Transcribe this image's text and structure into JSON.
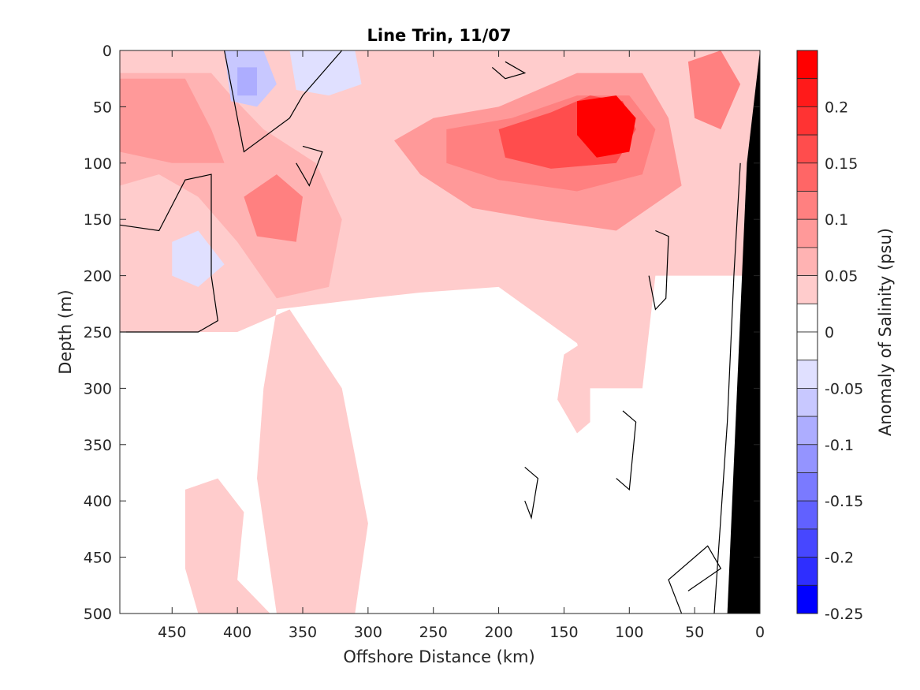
{
  "chart_data": {
    "type": "heatmap",
    "title": "Line Trin, 11/07",
    "xlabel": "Offshore Distance (km)",
    "ylabel": "Depth (m)",
    "colorbar_label": "Anomaly of Salinity (psu)",
    "xlim": [
      490,
      0
    ],
    "ylim": [
      0,
      500
    ],
    "x_reversed": true,
    "y_reversed": true,
    "x_ticks": [
      450,
      400,
      350,
      300,
      250,
      200,
      150,
      100,
      50,
      0
    ],
    "y_ticks": [
      0,
      50,
      100,
      150,
      200,
      250,
      300,
      350,
      400,
      450,
      500
    ],
    "clim": [
      -0.25,
      0.25
    ],
    "colorbar_ticks": [
      0.2,
      0.15,
      0.1,
      0.05,
      0,
      -0.05,
      -0.1,
      -0.15,
      -0.2,
      -0.25
    ],
    "colorbar_tick_labels": [
      "0.2",
      "0.15",
      "0.1",
      "0.05",
      "0",
      "-0.05",
      "-0.1",
      "-0.15",
      "-0.2",
      "-0.25"
    ],
    "colorbar_levels": [
      {
        "min": 0.225,
        "max": 0.25,
        "color": "#ff0000"
      },
      {
        "min": 0.2,
        "max": 0.225,
        "color": "#ff1a1a"
      },
      {
        "min": 0.175,
        "max": 0.2,
        "color": "#ff3333"
      },
      {
        "min": 0.15,
        "max": 0.175,
        "color": "#ff4d4d"
      },
      {
        "min": 0.125,
        "max": 0.15,
        "color": "#ff6666"
      },
      {
        "min": 0.1,
        "max": 0.125,
        "color": "#ff8080"
      },
      {
        "min": 0.075,
        "max": 0.1,
        "color": "#ff9999"
      },
      {
        "min": 0.05,
        "max": 0.075,
        "color": "#ffb3b3"
      },
      {
        "min": 0.025,
        "max": 0.05,
        "color": "#ffcccc"
      },
      {
        "min": 0.0,
        "max": 0.025,
        "color": "#ffffff"
      },
      {
        "min": -0.025,
        "max": 0.0,
        "color": "#ffffff"
      },
      {
        "min": -0.05,
        "max": -0.025,
        "color": "#e0e0ff"
      },
      {
        "min": -0.075,
        "max": -0.05,
        "color": "#c8c8ff"
      },
      {
        "min": -0.1,
        "max": -0.075,
        "color": "#adadff"
      },
      {
        "min": -0.125,
        "max": -0.1,
        "color": "#9494ff"
      },
      {
        "min": -0.15,
        "max": -0.125,
        "color": "#7a7aff"
      },
      {
        "min": -0.175,
        "max": -0.15,
        "color": "#6161ff"
      },
      {
        "min": -0.2,
        "max": -0.175,
        "color": "#4747ff"
      },
      {
        "min": -0.225,
        "max": -0.2,
        "color": "#2e2eff"
      },
      {
        "min": -0.25,
        "max": -0.225,
        "color": "#0000ff"
      }
    ],
    "features": {
      "pale_band": {
        "level": 0.03,
        "polygon": [
          [
            490,
            0
          ],
          [
            0,
            0
          ],
          [
            0,
            200
          ],
          [
            80,
            200
          ],
          [
            90,
            300
          ],
          [
            130,
            300
          ],
          [
            140,
            260
          ],
          [
            200,
            210
          ],
          [
            260,
            215
          ],
          [
            300,
            220
          ],
          [
            370,
            230
          ],
          [
            380,
            300
          ],
          [
            385,
            380
          ],
          [
            370,
            500
          ],
          [
            310,
            500
          ],
          [
            300,
            420
          ],
          [
            320,
            300
          ],
          [
            360,
            230
          ],
          [
            400,
            250
          ],
          [
            490,
            250
          ]
        ]
      },
      "lower_patch_left": {
        "level": 0.03,
        "polygon": [
          [
            440,
            390
          ],
          [
            415,
            380
          ],
          [
            395,
            410
          ],
          [
            400,
            470
          ],
          [
            375,
            500
          ],
          [
            430,
            500
          ],
          [
            440,
            460
          ]
        ]
      },
      "deep_right_patch": {
        "level": 0.03,
        "polygon": [
          [
            150,
            270
          ],
          [
            130,
            255
          ],
          [
            130,
            330
          ],
          [
            140,
            340
          ],
          [
            155,
            310
          ]
        ]
      },
      "mid_layer": {
        "level": 0.06,
        "polygon": [
          [
            490,
            20
          ],
          [
            420,
            20
          ],
          [
            405,
            40
          ],
          [
            380,
            70
          ],
          [
            340,
            100
          ],
          [
            320,
            150
          ],
          [
            330,
            210
          ],
          [
            370,
            220
          ],
          [
            400,
            170
          ],
          [
            430,
            130
          ],
          [
            460,
            110
          ],
          [
            490,
            120
          ]
        ]
      },
      "main_core_outer": {
        "level": 0.08,
        "polygon": [
          [
            250,
            60
          ],
          [
            200,
            50
          ],
          [
            140,
            20
          ],
          [
            90,
            20
          ],
          [
            70,
            60
          ],
          [
            60,
            120
          ],
          [
            110,
            160
          ],
          [
            170,
            150
          ],
          [
            220,
            140
          ],
          [
            260,
            110
          ],
          [
            280,
            80
          ]
        ]
      },
      "mid_layer_2": {
        "level": 0.09,
        "polygon": [
          [
            490,
            25
          ],
          [
            440,
            25
          ],
          [
            420,
            70
          ],
          [
            410,
            100
          ],
          [
            450,
            100
          ],
          [
            490,
            90
          ]
        ]
      },
      "main_core_mid": {
        "level": 0.12,
        "polygon": [
          [
            240,
            70
          ],
          [
            190,
            60
          ],
          [
            140,
            40
          ],
          [
            100,
            40
          ],
          [
            80,
            70
          ],
          [
            90,
            110
          ],
          [
            140,
            125
          ],
          [
            200,
            115
          ],
          [
            240,
            100
          ]
        ]
      },
      "left_mid_core": {
        "level": 0.12,
        "polygon": [
          [
            395,
            130
          ],
          [
            370,
            110
          ],
          [
            350,
            130
          ],
          [
            355,
            170
          ],
          [
            385,
            165
          ]
        ]
      },
      "main_core_inner": {
        "level": 0.17,
        "polygon": [
          [
            200,
            70
          ],
          [
            160,
            55
          ],
          [
            130,
            40
          ],
          [
            105,
            45
          ],
          [
            95,
            70
          ],
          [
            110,
            100
          ],
          [
            160,
            105
          ],
          [
            195,
            95
          ]
        ]
      },
      "main_core_center": {
        "level": 0.24,
        "polygon": [
          [
            140,
            45
          ],
          [
            110,
            40
          ],
          [
            95,
            60
          ],
          [
            100,
            90
          ],
          [
            125,
            95
          ],
          [
            140,
            75
          ]
        ]
      },
      "right_edge_patch": {
        "level": 0.12,
        "polygon": [
          [
            55,
            10
          ],
          [
            30,
            0
          ],
          [
            15,
            30
          ],
          [
            30,
            70
          ],
          [
            50,
            60
          ]
        ]
      },
      "negative_1": {
        "level": -0.06,
        "polygon": [
          [
            410,
            0
          ],
          [
            380,
            0
          ],
          [
            370,
            30
          ],
          [
            385,
            50
          ],
          [
            405,
            45
          ]
        ]
      },
      "negative_1_core": {
        "level": -0.1,
        "polygon": [
          [
            400,
            15
          ],
          [
            385,
            15
          ],
          [
            385,
            40
          ],
          [
            400,
            40
          ]
        ]
      },
      "negative_2": {
        "level": -0.05,
        "polygon": [
          [
            360,
            0
          ],
          [
            310,
            0
          ],
          [
            305,
            30
          ],
          [
            330,
            40
          ],
          [
            355,
            35
          ]
        ]
      },
      "negative_3": {
        "level": -0.04,
        "polygon": [
          [
            450,
            170
          ],
          [
            430,
            160
          ],
          [
            410,
            190
          ],
          [
            430,
            210
          ],
          [
            450,
            200
          ]
        ]
      }
    },
    "zero_contours": [
      [
        [
          490,
          155
        ],
        [
          460,
          160
        ],
        [
          440,
          115
        ],
        [
          420,
          110
        ],
        [
          420,
          200
        ],
        [
          415,
          240
        ],
        [
          430,
          250
        ],
        [
          490,
          250
        ]
      ],
      [
        [
          410,
          0
        ],
        [
          395,
          90
        ],
        [
          360,
          60
        ],
        [
          350,
          40
        ],
        [
          320,
          0
        ]
      ],
      [
        [
          350,
          85
        ],
        [
          335,
          90
        ],
        [
          345,
          120
        ],
        [
          355,
          100
        ]
      ],
      [
        [
          195,
          10
        ],
        [
          180,
          20
        ],
        [
          195,
          25
        ],
        [
          205,
          15
        ]
      ],
      [
        [
          80,
          160
        ],
        [
          70,
          165
        ],
        [
          72,
          220
        ],
        [
          80,
          230
        ],
        [
          85,
          200
        ]
      ],
      [
        [
          105,
          320
        ],
        [
          95,
          330
        ],
        [
          100,
          390
        ],
        [
          110,
          380
        ]
      ],
      [
        [
          180,
          370
        ],
        [
          170,
          380
        ],
        [
          175,
          415
        ],
        [
          180,
          400
        ]
      ],
      [
        [
          60,
          500
        ],
        [
          70,
          470
        ],
        [
          40,
          440
        ],
        [
          30,
          460
        ],
        [
          55,
          480
        ]
      ],
      [
        [
          35,
          500
        ],
        [
          25,
          330
        ],
        [
          20,
          200
        ],
        [
          15,
          100
        ]
      ]
    ],
    "land_polygon": [
      [
        0,
        0
      ],
      [
        0,
        500
      ],
      [
        25,
        500
      ],
      [
        10,
        100
      ],
      [
        3,
        30
      ]
    ]
  }
}
